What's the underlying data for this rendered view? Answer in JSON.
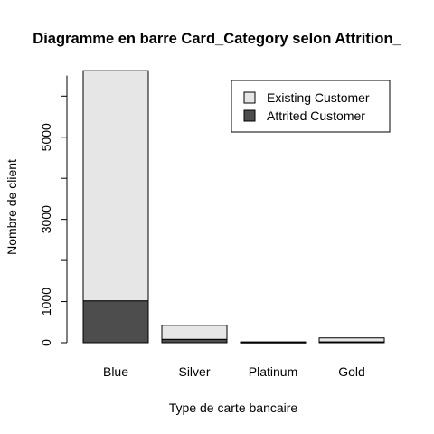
{
  "chart_data": {
    "type": "bar",
    "stacked": true,
    "title": "Diagramme en barre Card_Category selon Attrition_",
    "xlabel": "Type de carte bancaire",
    "ylabel": "Nombre de client",
    "categories": [
      "Blue",
      "Silver",
      "Platinum",
      "Gold"
    ],
    "series": [
      {
        "name": "Attrited Customer",
        "color": "#4d4d4d",
        "values": [
          1019,
          82,
          5,
          21
        ]
      },
      {
        "name": "Existing Customer",
        "color": "#e6e6e6",
        "values": [
          5600,
          340,
          15,
          95
        ]
      }
    ],
    "yticks": [
      0,
      1000,
      3000,
      5000
    ],
    "ylim": [
      0,
      6619
    ],
    "legend": {
      "position": "top-right",
      "entries": [
        {
          "label": "Existing Customer",
          "color": "#e6e6e6"
        },
        {
          "label": "Attrited Customer",
          "color": "#4d4d4d"
        }
      ]
    },
    "grid": false
  }
}
